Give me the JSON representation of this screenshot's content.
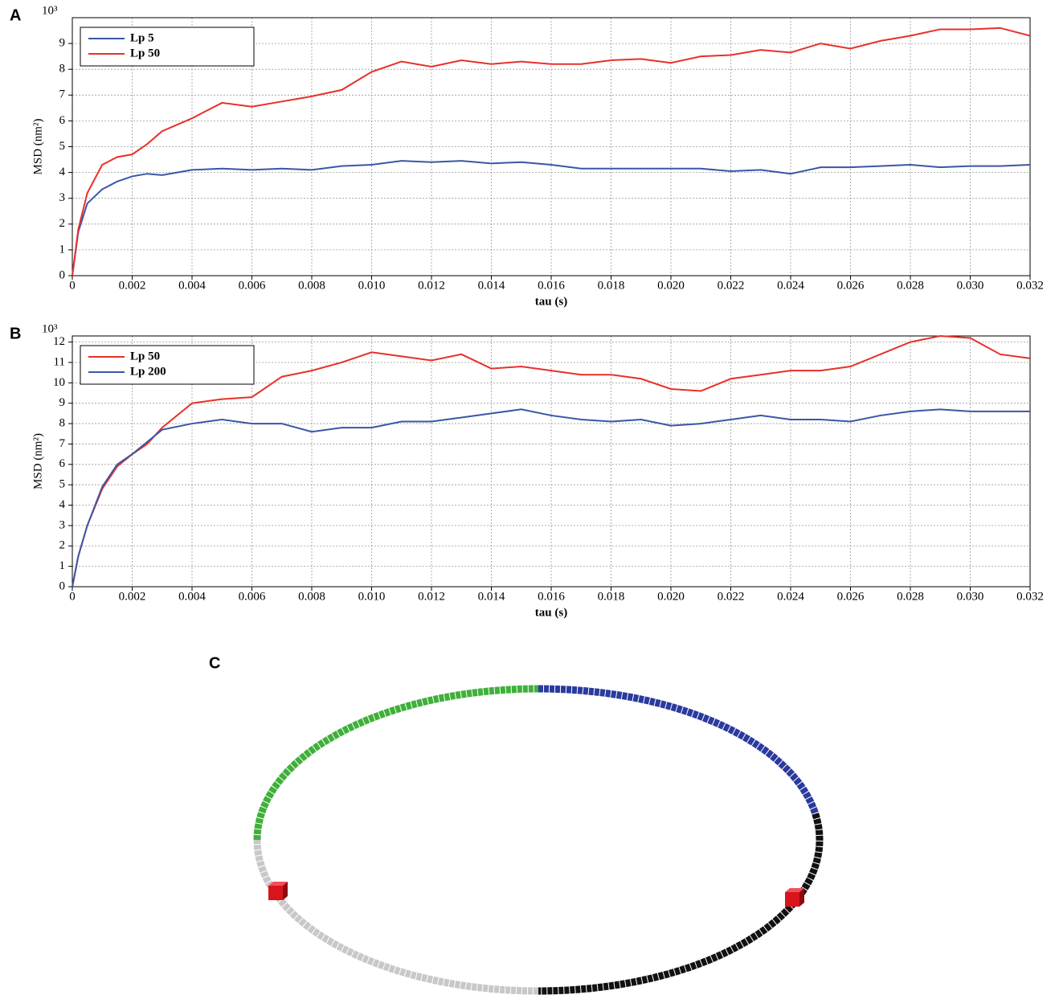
{
  "chart_data": [
    {
      "type": "line",
      "panel": "A",
      "xlabel": "tau (s)",
      "ylabel": "MSD (nm²)",
      "y_multiplier": "10³",
      "x": [
        0,
        0.0002,
        0.0005,
        0.001,
        0.0015,
        0.002,
        0.0025,
        0.003,
        0.004,
        0.005,
        0.006,
        0.007,
        0.008,
        0.009,
        0.01,
        0.011,
        0.012,
        0.013,
        0.014,
        0.015,
        0.016,
        0.017,
        0.018,
        0.019,
        0.02,
        0.021,
        0.022,
        0.023,
        0.024,
        0.025,
        0.026,
        0.027,
        0.028,
        0.029,
        0.03,
        0.031,
        0.032
      ],
      "series": [
        {
          "name": "Lp 5",
          "color": "#3a56a6",
          "values": [
            0,
            1.7,
            2.8,
            3.35,
            3.65,
            3.85,
            3.95,
            3.9,
            4.1,
            4.15,
            4.1,
            4.15,
            4.1,
            4.25,
            4.3,
            4.45,
            4.4,
            4.45,
            4.35,
            4.4,
            4.3,
            4.15,
            4.15,
            4.15,
            4.15,
            4.15,
            4.05,
            4.1,
            3.95,
            4.2,
            4.2,
            4.25,
            4.3,
            4.2,
            4.25,
            4.25,
            4.3
          ]
        },
        {
          "name": "Lp 50",
          "color": "#e8302a",
          "values": [
            0,
            1.8,
            3.2,
            4.3,
            4.6,
            4.7,
            5.1,
            5.6,
            6.1,
            6.7,
            6.55,
            6.75,
            6.95,
            7.2,
            7.9,
            8.3,
            8.1,
            8.35,
            8.2,
            8.3,
            8.2,
            8.2,
            8.35,
            8.4,
            8.25,
            8.5,
            8.55,
            8.75,
            8.65,
            9.0,
            8.8,
            9.1,
            9.3,
            9.55,
            9.55,
            9.6,
            9.3
          ]
        }
      ],
      "xlim": [
        0,
        0.032
      ],
      "ylim": [
        0,
        10
      ],
      "xticks": [
        0,
        0.002,
        0.004,
        0.006,
        0.008,
        {
          "value": 0.01,
          "label": "0.010"
        },
        0.012,
        0.014,
        0.016,
        0.018,
        {
          "value": 0.02,
          "label": "0.020"
        },
        0.022,
        0.024,
        0.026,
        0.028,
        {
          "value": 0.03,
          "label": "0.030"
        },
        0.032
      ],
      "yticks": [
        0,
        1,
        2,
        3,
        4,
        5,
        6,
        7,
        8,
        9
      ],
      "grid": true,
      "legend": "upper left"
    },
    {
      "type": "line",
      "panel": "B",
      "xlabel": "tau (s)",
      "ylabel": "MSD (nm²)",
      "y_multiplier": "10³",
      "x": [
        0,
        0.0002,
        0.0005,
        0.001,
        0.0015,
        0.002,
        0.0025,
        0.003,
        0.004,
        0.005,
        0.006,
        0.007,
        0.008,
        0.009,
        0.01,
        0.011,
        0.012,
        0.013,
        0.014,
        0.015,
        0.016,
        0.017,
        0.018,
        0.019,
        0.02,
        0.021,
        0.022,
        0.023,
        0.024,
        0.025,
        0.026,
        0.027,
        0.028,
        0.029,
        0.03,
        0.031,
        0.032
      ],
      "series": [
        {
          "name": "Lp 50",
          "color": "#e8302a",
          "values": [
            0,
            1.5,
            3.0,
            4.8,
            5.9,
            6.5,
            7.0,
            7.8,
            9.0,
            9.2,
            9.3,
            10.3,
            10.6,
            11.0,
            11.5,
            11.3,
            11.1,
            11.4,
            10.7,
            10.8,
            10.6,
            10.4,
            10.4,
            10.2,
            9.7,
            9.6,
            10.2,
            10.4,
            10.6,
            10.6,
            10.8,
            11.4,
            12.0,
            12.3,
            12.2,
            11.4,
            11.2
          ]
        },
        {
          "name": "Lp 200",
          "color": "#3a56a6",
          "values": [
            0,
            1.5,
            3.0,
            4.9,
            6.0,
            6.5,
            7.1,
            7.7,
            8.0,
            8.2,
            8.0,
            8.0,
            7.6,
            7.8,
            7.8,
            8.1,
            8.1,
            8.3,
            8.5,
            8.7,
            8.4,
            8.2,
            8.1,
            8.2,
            7.9,
            8.0,
            8.2,
            8.4,
            8.2,
            8.2,
            8.1,
            8.4,
            8.6,
            8.7,
            8.6,
            8.6,
            8.6
          ]
        }
      ],
      "xlim": [
        0,
        0.032
      ],
      "ylim": [
        0,
        12.3
      ],
      "xticks": [
        0,
        0.002,
        0.004,
        0.006,
        0.008,
        {
          "value": 0.01,
          "label": "0.010"
        },
        0.012,
        0.014,
        0.016,
        0.018,
        {
          "value": 0.02,
          "label": "0.020"
        },
        0.022,
        0.024,
        0.026,
        0.028,
        {
          "value": 0.03,
          "label": "0.030"
        },
        0.032
      ],
      "yticks": [
        0,
        1,
        2,
        3,
        4,
        5,
        6,
        7,
        8,
        9,
        10,
        11,
        12
      ],
      "grid": true,
      "legend": "upper left"
    }
  ],
  "diagram": {
    "panel": "C"
  }
}
